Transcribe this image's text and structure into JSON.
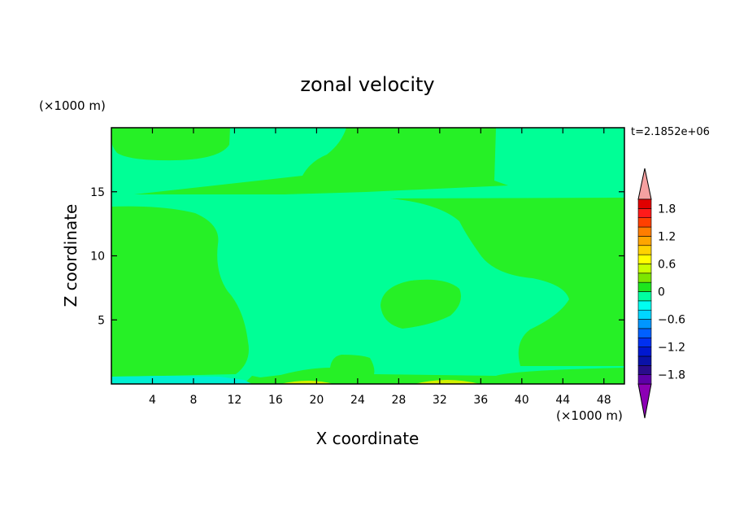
{
  "chart_data": {
    "type": "heatmap",
    "title": "zonal velocity",
    "xlabel": "X coordinate",
    "ylabel": "Z coordinate",
    "x_unit": "(×1000 m)",
    "y_unit": "(×1000 m)",
    "time_label": "t=2.1852e+06",
    "xlim": [
      0,
      50
    ],
    "ylim": [
      0,
      20
    ],
    "x_ticks": [
      4,
      8,
      12,
      16,
      20,
      24,
      28,
      32,
      36,
      40,
      44,
      48
    ],
    "y_ticks": [
      5,
      10,
      15
    ],
    "grid": false,
    "colorbar": {
      "tick_labels": [
        "1.8",
        "1.2",
        "0.6",
        "0",
        "−0.6",
        "−1.2",
        "−1.8"
      ],
      "tick_values": [
        1.8,
        1.2,
        0.6,
        0,
        -0.6,
        -1.2,
        -1.8
      ],
      "levels": [
        -2.0,
        -1.8,
        -1.6,
        -1.4,
        -1.2,
        -1.0,
        -0.8,
        -0.6,
        -0.4,
        -0.2,
        0,
        0.2,
        0.4,
        0.6,
        0.8,
        1.0,
        1.2,
        1.4,
        1.6,
        1.8,
        2.0
      ],
      "colors": [
        "#5d00a8",
        "#2a0c8c",
        "#0a12a8",
        "#0018d0",
        "#0030f0",
        "#0060ff",
        "#0096ff",
        "#00d6ff",
        "#00fff0",
        "#00ffa0",
        "#1ee61e",
        "#7de600",
        "#c8ff00",
        "#ffff00",
        "#ffd200",
        "#ffa500",
        "#ff7d00",
        "#ff4000",
        "#ff1a1a",
        "#e00000"
      ],
      "over_color": "#f5a0a0",
      "under_color": "#8c00b4"
    },
    "regions": [
      {
        "name": "background",
        "level": 0.1,
        "color": "#00ff96"
      },
      {
        "name": "upper-left",
        "level": 0.1,
        "color": "#26f026"
      },
      {
        "name": "upper-middle",
        "level": 0.1,
        "color": "#26f026"
      },
      {
        "name": "left-middle",
        "level": 0.1,
        "color": "#26f026"
      },
      {
        "name": "right-middle",
        "level": 0.1,
        "color": "#26f026"
      },
      {
        "name": "central-blob",
        "level": 0.1,
        "color": "#26f026"
      },
      {
        "name": "bottom-blob",
        "level": 0.1,
        "color": "#26f026"
      },
      {
        "name": "bottom-strip",
        "level": -0.2,
        "color": "#00f0d2"
      },
      {
        "name": "bottom-yellow",
        "level": 0.5,
        "color": "#d2f000"
      }
    ]
  }
}
